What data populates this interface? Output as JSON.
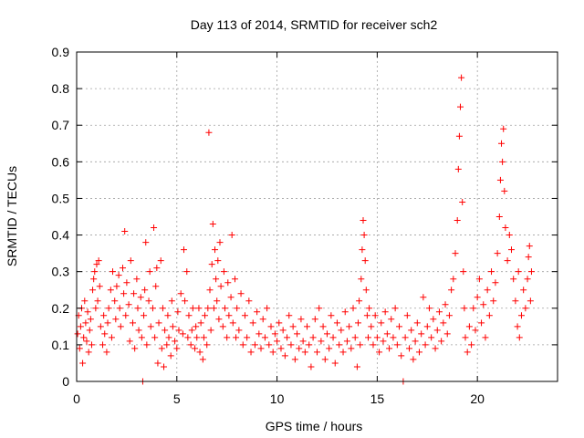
{
  "chart_data": {
    "type": "scatter",
    "title": "Day 113 of 2014, SRMTID for receiver sch2",
    "xlabel": "GPS time / hours",
    "ylabel": "SRMTID / TECUs",
    "xlim": [
      0,
      24
    ],
    "ylim": [
      0,
      0.9
    ],
    "x_ticks": [
      0,
      5,
      10,
      15,
      20
    ],
    "y_ticks": [
      0,
      0.1,
      0.2,
      0.3,
      0.4,
      0.5,
      0.6,
      0.7,
      0.8,
      0.9
    ],
    "x_tick_labels": [
      "0",
      "5",
      "10",
      "15",
      "20"
    ],
    "y_tick_labels": [
      "0",
      "0.1",
      "0.2",
      "0.3",
      "0.4",
      "0.5",
      "0.6",
      "0.7",
      "0.8",
      "0.9"
    ],
    "grid": true,
    "marker": "+",
    "color": "#ff0000",
    "series": [
      {
        "name": "SRMTID",
        "points": [
          [
            0.05,
            0.13
          ],
          [
            0.1,
            0.18
          ],
          [
            0.15,
            0.09
          ],
          [
            0.2,
            0.15
          ],
          [
            0.25,
            0.2
          ],
          [
            0.3,
            0.05
          ],
          [
            0.35,
            0.12
          ],
          [
            0.4,
            0.22
          ],
          [
            0.45,
            0.16
          ],
          [
            0.5,
            0.11
          ],
          [
            0.55,
            0.19
          ],
          [
            0.6,
            0.08
          ],
          [
            0.65,
            0.14
          ],
          [
            0.7,
            0.17
          ],
          [
            0.75,
            0.1
          ],
          [
            0.8,
            0.25
          ],
          [
            0.85,
            0.28
          ],
          [
            0.9,
            0.3
          ],
          [
            0.95,
            0.2
          ],
          [
            1.0,
            0.32
          ],
          [
            1.05,
            0.22
          ],
          [
            1.1,
            0.33
          ],
          [
            1.15,
            0.26
          ],
          [
            1.2,
            0.15
          ],
          [
            1.3,
            0.1
          ],
          [
            1.35,
            0.18
          ],
          [
            1.4,
            0.13
          ],
          [
            1.5,
            0.08
          ],
          [
            1.55,
            0.16
          ],
          [
            1.6,
            0.2
          ],
          [
            1.7,
            0.25
          ],
          [
            1.75,
            0.12
          ],
          [
            1.8,
            0.3
          ],
          [
            1.9,
            0.22
          ],
          [
            1.95,
            0.17
          ],
          [
            2.0,
            0.26
          ],
          [
            2.1,
            0.29
          ],
          [
            2.15,
            0.2
          ],
          [
            2.2,
            0.15
          ],
          [
            2.3,
            0.31
          ],
          [
            2.35,
            0.24
          ],
          [
            2.4,
            0.41
          ],
          [
            2.45,
            0.18
          ],
          [
            2.5,
            0.27
          ],
          [
            2.6,
            0.21
          ],
          [
            2.65,
            0.11
          ],
          [
            2.7,
            0.33
          ],
          [
            2.8,
            0.16
          ],
          [
            2.85,
            0.24
          ],
          [
            2.9,
            0.09
          ],
          [
            3.0,
            0.28
          ],
          [
            3.05,
            0.2
          ],
          [
            3.1,
            0.14
          ],
          [
            3.2,
            0.23
          ],
          [
            3.25,
            0.12
          ],
          [
            3.3,
            0.0
          ],
          [
            3.35,
            0.18
          ],
          [
            3.4,
            0.25
          ],
          [
            3.45,
            0.38
          ],
          [
            3.5,
            0.1
          ],
          [
            3.6,
            0.22
          ],
          [
            3.65,
            0.3
          ],
          [
            3.7,
            0.15
          ],
          [
            3.8,
            0.2
          ],
          [
            3.85,
            0.42
          ],
          [
            3.9,
            0.12
          ],
          [
            3.95,
            0.26
          ],
          [
            4.0,
            0.31
          ],
          [
            4.05,
            0.05
          ],
          [
            4.1,
            0.16
          ],
          [
            4.2,
            0.33
          ],
          [
            4.25,
            0.09
          ],
          [
            4.3,
            0.2
          ],
          [
            4.35,
            0.04
          ],
          [
            4.4,
            0.14
          ],
          [
            4.5,
            0.1
          ],
          [
            4.55,
            0.18
          ],
          [
            4.6,
            0.12
          ],
          [
            4.7,
            0.07
          ],
          [
            4.75,
            0.22
          ],
          [
            4.8,
            0.15
          ],
          [
            4.9,
            0.11
          ],
          [
            5.0,
            0.09
          ],
          [
            5.05,
            0.19
          ],
          [
            5.1,
            0.14
          ],
          [
            5.2,
            0.24
          ],
          [
            5.3,
            0.13
          ],
          [
            5.35,
            0.36
          ],
          [
            5.4,
            0.22
          ],
          [
            5.5,
            0.3
          ],
          [
            5.55,
            0.12
          ],
          [
            5.6,
            0.18
          ],
          [
            5.7,
            0.1
          ],
          [
            5.75,
            0.14
          ],
          [
            5.8,
            0.2
          ],
          [
            5.9,
            0.09
          ],
          [
            5.95,
            0.15
          ],
          [
            6.0,
            0.12
          ],
          [
            6.1,
            0.2
          ],
          [
            6.15,
            0.08
          ],
          [
            6.2,
            0.16
          ],
          [
            6.3,
            0.06
          ],
          [
            6.35,
            0.12
          ],
          [
            6.4,
            0.18
          ],
          [
            6.5,
            0.1
          ],
          [
            6.55,
            0.2
          ],
          [
            6.6,
            0.68
          ],
          [
            6.65,
            0.25
          ],
          [
            6.7,
            0.14
          ],
          [
            6.75,
            0.32
          ],
          [
            6.8,
            0.43
          ],
          [
            6.85,
            0.2
          ],
          [
            6.9,
            0.36
          ],
          [
            6.95,
            0.28
          ],
          [
            7.0,
            0.22
          ],
          [
            7.05,
            0.33
          ],
          [
            7.1,
            0.17
          ],
          [
            7.15,
            0.38
          ],
          [
            7.2,
            0.26
          ],
          [
            7.3,
            0.15
          ],
          [
            7.35,
            0.3
          ],
          [
            7.4,
            0.2
          ],
          [
            7.5,
            0.12
          ],
          [
            7.55,
            0.27
          ],
          [
            7.6,
            0.18
          ],
          [
            7.7,
            0.23
          ],
          [
            7.75,
            0.4
          ],
          [
            7.8,
            0.16
          ],
          [
            7.9,
            0.28
          ],
          [
            7.95,
            0.12
          ],
          [
            8.0,
            0.2
          ],
          [
            8.1,
            0.14
          ],
          [
            8.2,
            0.24
          ],
          [
            8.3,
            0.1
          ],
          [
            8.4,
            0.18
          ],
          [
            8.5,
            0.12
          ],
          [
            8.6,
            0.22
          ],
          [
            8.7,
            0.08
          ],
          [
            8.8,
            0.16
          ],
          [
            8.9,
            0.1
          ],
          [
            9.0,
            0.19
          ],
          [
            9.1,
            0.13
          ],
          [
            9.2,
            0.09
          ],
          [
            9.3,
            0.17
          ],
          [
            9.4,
            0.12
          ],
          [
            9.5,
            0.2
          ],
          [
            9.6,
            0.1
          ],
          [
            9.7,
            0.15
          ],
          [
            9.8,
            0.08
          ],
          [
            9.9,
            0.13
          ],
          [
            10.0,
            0.11
          ],
          [
            10.1,
            0.16
          ],
          [
            10.2,
            0.09
          ],
          [
            10.3,
            0.14
          ],
          [
            10.4,
            0.07
          ],
          [
            10.5,
            0.12
          ],
          [
            10.6,
            0.18
          ],
          [
            10.7,
            0.1
          ],
          [
            10.8,
            0.15
          ],
          [
            10.9,
            0.06
          ],
          [
            11.0,
            0.13
          ],
          [
            11.1,
            0.09
          ],
          [
            11.2,
            0.17
          ],
          [
            11.3,
            0.11
          ],
          [
            11.4,
            0.08
          ],
          [
            11.5,
            0.15
          ],
          [
            11.6,
            0.1
          ],
          [
            11.7,
            0.04
          ],
          [
            11.8,
            0.12
          ],
          [
            11.9,
            0.17
          ],
          [
            12.0,
            0.08
          ],
          [
            12.1,
            0.2
          ],
          [
            12.2,
            0.11
          ],
          [
            12.3,
            0.15
          ],
          [
            12.4,
            0.06
          ],
          [
            12.5,
            0.13
          ],
          [
            12.6,
            0.09
          ],
          [
            12.7,
            0.18
          ],
          [
            12.8,
            0.12
          ],
          [
            12.9,
            0.05
          ],
          [
            13.0,
            0.16
          ],
          [
            13.1,
            0.1
          ],
          [
            13.2,
            0.14
          ],
          [
            13.3,
            0.08
          ],
          [
            13.4,
            0.19
          ],
          [
            13.5,
            0.11
          ],
          [
            13.6,
            0.15
          ],
          [
            13.7,
            0.09
          ],
          [
            13.8,
            0.2
          ],
          [
            13.9,
            0.12
          ],
          [
            14.0,
            0.04
          ],
          [
            14.05,
            0.16
          ],
          [
            14.1,
            0.22
          ],
          [
            14.15,
            0.1
          ],
          [
            14.2,
            0.28
          ],
          [
            14.25,
            0.36
          ],
          [
            14.3,
            0.44
          ],
          [
            14.35,
            0.4
          ],
          [
            14.4,
            0.33
          ],
          [
            14.45,
            0.25
          ],
          [
            14.5,
            0.18
          ],
          [
            14.55,
            0.12
          ],
          [
            14.6,
            0.2
          ],
          [
            14.7,
            0.15
          ],
          [
            14.8,
            0.1
          ],
          [
            14.9,
            0.18
          ],
          [
            15.0,
            0.12
          ],
          [
            15.1,
            0.08
          ],
          [
            15.2,
            0.16
          ],
          [
            15.3,
            0.11
          ],
          [
            15.4,
            0.19
          ],
          [
            15.5,
            0.13
          ],
          [
            15.6,
            0.09
          ],
          [
            15.7,
            0.17
          ],
          [
            15.8,
            0.12
          ],
          [
            15.9,
            0.2
          ],
          [
            16.0,
            0.1
          ],
          [
            16.1,
            0.15
          ],
          [
            16.2,
            0.07
          ],
          [
            16.3,
            0.0
          ],
          [
            16.4,
            0.12
          ],
          [
            16.5,
            0.18
          ],
          [
            16.6,
            0.09
          ],
          [
            16.7,
            0.14
          ],
          [
            16.8,
            0.06
          ],
          [
            16.9,
            0.11
          ],
          [
            17.0,
            0.16
          ],
          [
            17.1,
            0.08
          ],
          [
            17.2,
            0.13
          ],
          [
            17.3,
            0.23
          ],
          [
            17.4,
            0.1
          ],
          [
            17.5,
            0.15
          ],
          [
            17.6,
            0.2
          ],
          [
            17.7,
            0.12
          ],
          [
            17.8,
            0.17
          ],
          [
            17.9,
            0.09
          ],
          [
            18.0,
            0.14
          ],
          [
            18.1,
            0.19
          ],
          [
            18.2,
            0.11
          ],
          [
            18.3,
            0.16
          ],
          [
            18.4,
            0.21
          ],
          [
            18.5,
            0.13
          ],
          [
            18.6,
            0.18
          ],
          [
            18.7,
            0.25
          ],
          [
            18.8,
            0.28
          ],
          [
            18.9,
            0.35
          ],
          [
            19.0,
            0.44
          ],
          [
            19.05,
            0.58
          ],
          [
            19.1,
            0.67
          ],
          [
            19.15,
            0.75
          ],
          [
            19.2,
            0.83
          ],
          [
            19.25,
            0.49
          ],
          [
            19.3,
            0.3
          ],
          [
            19.35,
            0.2
          ],
          [
            19.4,
            0.12
          ],
          [
            19.5,
            0.08
          ],
          [
            19.6,
            0.15
          ],
          [
            19.7,
            0.1
          ],
          [
            19.8,
            0.2
          ],
          [
            19.9,
            0.14
          ],
          [
            20.0,
            0.23
          ],
          [
            20.1,
            0.28
          ],
          [
            20.2,
            0.16
          ],
          [
            20.3,
            0.21
          ],
          [
            20.4,
            0.12
          ],
          [
            20.5,
            0.25
          ],
          [
            20.6,
            0.18
          ],
          [
            20.7,
            0.3
          ],
          [
            20.8,
            0.22
          ],
          [
            20.9,
            0.27
          ],
          [
            21.0,
            0.35
          ],
          [
            21.1,
            0.45
          ],
          [
            21.15,
            0.55
          ],
          [
            21.2,
            0.65
          ],
          [
            21.25,
            0.6
          ],
          [
            21.3,
            0.69
          ],
          [
            21.35,
            0.52
          ],
          [
            21.4,
            0.42
          ],
          [
            21.5,
            0.33
          ],
          [
            21.6,
            0.4
          ],
          [
            21.7,
            0.36
          ],
          [
            21.8,
            0.28
          ],
          [
            21.9,
            0.22
          ],
          [
            22.0,
            0.15
          ],
          [
            22.05,
            0.3
          ],
          [
            22.1,
            0.12
          ],
          [
            22.2,
            0.18
          ],
          [
            22.3,
            0.25
          ],
          [
            22.4,
            0.2
          ],
          [
            22.5,
            0.28
          ],
          [
            22.55,
            0.34
          ],
          [
            22.6,
            0.37
          ],
          [
            22.65,
            0.22
          ],
          [
            22.7,
            0.3
          ]
        ]
      }
    ]
  }
}
